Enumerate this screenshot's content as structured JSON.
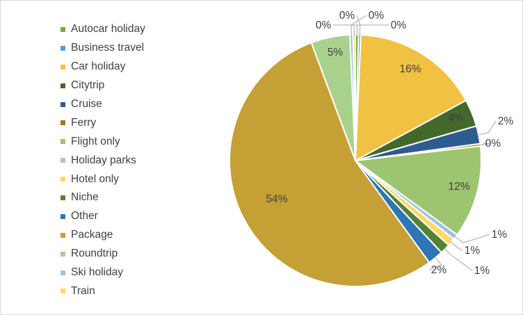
{
  "chart_data": {
    "type": "pie",
    "title": "",
    "legend_position": "left",
    "slices": [
      {
        "name": "Autocar holiday",
        "value": 0.4,
        "label": "0%",
        "color": "#70ad47"
      },
      {
        "name": "Business travel",
        "value": 0.3,
        "label": "0%",
        "color": "#5b9bd5"
      },
      {
        "name": "Car holiday",
        "value": 16.4,
        "label": "16%",
        "color": "#f1c142"
      },
      {
        "name": "Citytrip",
        "value": 3.5,
        "label": "4%",
        "color": "#43682b"
      },
      {
        "name": "Cruise",
        "value": 2.3,
        "label": "2%",
        "color": "#2f5c8f"
      },
      {
        "name": "Ferry",
        "value": 0.3,
        "label": "0%",
        "color": "#9e7a18"
      },
      {
        "name": "Flight only",
        "value": 11.9,
        "label": "12%",
        "color": "#9dc46f"
      },
      {
        "name": "Holiday parks",
        "value": 0.7,
        "label": "1%",
        "color": "#9dc3e6"
      },
      {
        "name": "Hotel only",
        "value": 1.0,
        "label": "1%",
        "color": "#ffd966"
      },
      {
        "name": "Niche",
        "value": 1.3,
        "label": "1%",
        "color": "#548235"
      },
      {
        "name": "Other",
        "value": 2.0,
        "label": "2%",
        "color": "#2e75b6"
      },
      {
        "name": "Package",
        "value": 54.4,
        "label": "54%",
        "color": "#c4a035"
      },
      {
        "name": "Roundtrip",
        "value": 5.0,
        "label": "5%",
        "color": "#a9d18e"
      },
      {
        "name": "Ski holiday",
        "value": 0.4,
        "label": "0%",
        "color": "#9dc3e6"
      },
      {
        "name": "Train",
        "value": 0.3,
        "label": "0%",
        "color": "#ffd966"
      }
    ]
  },
  "legend": {
    "items": [
      {
        "label": "Autocar holiday",
        "color": "#70ad47"
      },
      {
        "label": "Business travel",
        "color": "#5b9bd5"
      },
      {
        "label": "Car holiday",
        "color": "#f1c142"
      },
      {
        "label": "Citytrip",
        "color": "#43682b"
      },
      {
        "label": "Cruise",
        "color": "#2f5c8f"
      },
      {
        "label": "Ferry",
        "color": "#9e7a18"
      },
      {
        "label": "Flight only",
        "color": "#9dc46f"
      },
      {
        "label": "Holiday parks",
        "color": "#9dc3e6"
      },
      {
        "label": "Hotel only",
        "color": "#ffd966"
      },
      {
        "label": "Niche",
        "color": "#548235"
      },
      {
        "label": "Other",
        "color": "#2e75b6"
      },
      {
        "label": "Package",
        "color": "#c4a035"
      },
      {
        "label": "Roundtrip",
        "color": "#a9d18e"
      },
      {
        "label": "Ski holiday",
        "color": "#9dc3e6"
      },
      {
        "label": "Train",
        "color": "#ffd966"
      }
    ]
  },
  "colors": {
    "leader_line": "#a6a6a6",
    "slice_border": "#ffffff"
  }
}
